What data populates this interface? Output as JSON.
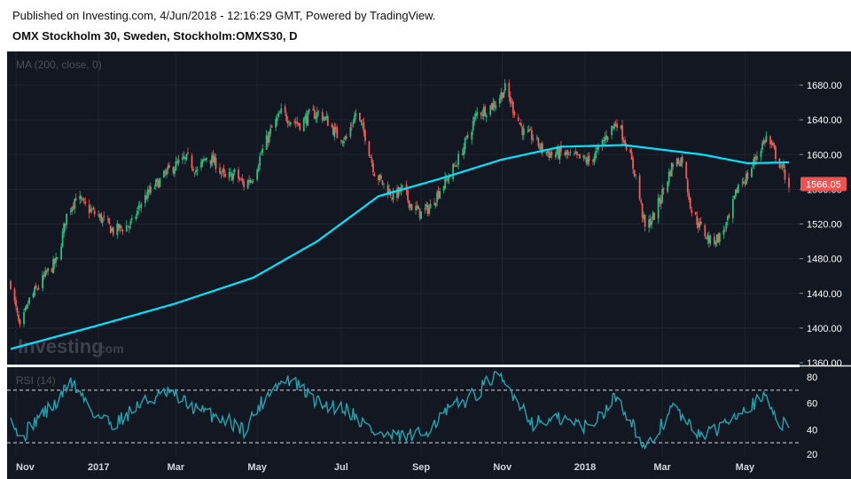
{
  "header": {
    "published": "Published on Investing.com, 4/Jun/2018 - 12:16:29 GMT, Powered by TradingView.",
    "title": "OMX Stockholm 30, Sweden, Stockholm:OMXS30, D"
  },
  "watermark": {
    "brand": "Investing",
    "suffix": ".com"
  },
  "colors": {
    "background": "#131722",
    "grid": "#1f2430",
    "up": "#26c281",
    "down": "#ef5a5a",
    "ma": "#00e5ff",
    "rsi": "#1fa5b0",
    "price_badge": "#ef5350"
  },
  "chart_data": [
    {
      "type": "candlestick",
      "legend": "MA (200, close, 0)",
      "ylim": [
        1360,
        1700
      ],
      "yticks": [
        "1680.00",
        "1640.00",
        "1600.00",
        "1560.00",
        "1520.00",
        "1480.00",
        "1440.00",
        "1400.00",
        "1360.00"
      ],
      "last_price": "1566.05",
      "x_labels": [
        "Nov",
        "2017",
        "Mar",
        "May",
        "Jul",
        "Sep",
        "Nov",
        "2018",
        "Mar",
        "May"
      ],
      "close_anchors": [
        [
          "2016-10-28",
          1452
        ],
        [
          "2016-11-04",
          1398
        ],
        [
          "2016-11-11",
          1432
        ],
        [
          "2016-11-25",
          1465
        ],
        [
          "2016-12-02",
          1478
        ],
        [
          "2016-12-09",
          1530
        ],
        [
          "2016-12-16",
          1552
        ],
        [
          "2016-12-23",
          1540
        ],
        [
          "2017-01-05",
          1525
        ],
        [
          "2017-01-13",
          1512
        ],
        [
          "2017-01-27",
          1520
        ],
        [
          "2017-02-03",
          1545
        ],
        [
          "2017-02-10",
          1558
        ],
        [
          "2017-02-17",
          1570
        ],
        [
          "2017-02-24",
          1582
        ],
        [
          "2017-03-03",
          1590
        ],
        [
          "2017-03-10",
          1595
        ],
        [
          "2017-03-17",
          1580
        ],
        [
          "2017-03-24",
          1598
        ],
        [
          "2017-03-31",
          1590
        ],
        [
          "2017-04-07",
          1572
        ],
        [
          "2017-04-14",
          1578
        ],
        [
          "2017-04-21",
          1565
        ],
        [
          "2017-04-28",
          1575
        ],
        [
          "2017-05-05",
          1605
        ],
        [
          "2017-05-12",
          1630
        ],
        [
          "2017-05-19",
          1648
        ],
        [
          "2017-05-26",
          1640
        ],
        [
          "2017-06-02",
          1635
        ],
        [
          "2017-06-09",
          1645
        ],
        [
          "2017-06-16",
          1648
        ],
        [
          "2017-06-23",
          1638
        ],
        [
          "2017-06-30",
          1622
        ],
        [
          "2017-07-07",
          1618
        ],
        [
          "2017-07-14",
          1648
        ],
        [
          "2017-07-21",
          1622
        ],
        [
          "2017-07-28",
          1580
        ],
        [
          "2017-08-04",
          1565
        ],
        [
          "2017-08-11",
          1552
        ],
        [
          "2017-08-18",
          1560
        ],
        [
          "2017-08-25",
          1540
        ],
        [
          "2017-09-01",
          1532
        ],
        [
          "2017-09-08",
          1540
        ],
        [
          "2017-09-15",
          1560
        ],
        [
          "2017-09-22",
          1575
        ],
        [
          "2017-09-29",
          1595
        ],
        [
          "2017-10-06",
          1620
        ],
        [
          "2017-10-13",
          1648
        ],
        [
          "2017-10-20",
          1652
        ],
        [
          "2017-10-27",
          1660
        ],
        [
          "2017-11-03",
          1676
        ],
        [
          "2017-11-10",
          1650
        ],
        [
          "2017-11-17",
          1625
        ],
        [
          "2017-11-24",
          1620
        ],
        [
          "2017-12-01",
          1605
        ],
        [
          "2017-12-08",
          1600
        ],
        [
          "2017-12-15",
          1602
        ],
        [
          "2017-12-22",
          1598
        ],
        [
          "2018-01-05",
          1592
        ],
        [
          "2018-01-12",
          1605
        ],
        [
          "2018-01-19",
          1625
        ],
        [
          "2018-01-26",
          1638
        ],
        [
          "2018-02-02",
          1612
        ],
        [
          "2018-02-09",
          1575
        ],
        [
          "2018-02-16",
          1515
        ],
        [
          "2018-02-23",
          1530
        ],
        [
          "2018-03-02",
          1560
        ],
        [
          "2018-03-09",
          1590
        ],
        [
          "2018-03-16",
          1595
        ],
        [
          "2018-03-23",
          1535
        ],
        [
          "2018-03-30",
          1515
        ],
        [
          "2018-04-06",
          1500
        ],
        [
          "2018-04-13",
          1505
        ],
        [
          "2018-04-20",
          1525
        ],
        [
          "2018-04-27",
          1565
        ],
        [
          "2018-05-04",
          1575
        ],
        [
          "2018-05-11",
          1600
        ],
        [
          "2018-05-18",
          1620
        ],
        [
          "2018-05-25",
          1600
        ],
        [
          "2018-06-04",
          1566
        ]
      ],
      "ma": {
        "name": "MA (200, close, 0)",
        "anchors": [
          [
            "2016-10-28",
            1376
          ],
          [
            "2016-12-30",
            1402
          ],
          [
            "2017-02-28",
            1428
          ],
          [
            "2017-04-28",
            1458
          ],
          [
            "2017-06-15",
            1500
          ],
          [
            "2017-07-31",
            1552
          ],
          [
            "2017-09-15",
            1572
          ],
          [
            "2017-10-31",
            1594
          ],
          [
            "2017-12-15",
            1609
          ],
          [
            "2018-01-31",
            1611
          ],
          [
            "2018-03-31",
            1600
          ],
          [
            "2018-05-04",
            1590
          ],
          [
            "2018-06-04",
            1591
          ]
        ]
      }
    },
    {
      "type": "line",
      "legend": "RSI (14)",
      "ylim": [
        20,
        85
      ],
      "yticks": [
        "80",
        "60",
        "40",
        "20"
      ],
      "bands": [
        70,
        30
      ],
      "anchors": [
        [
          "2016-10-28",
          55
        ],
        [
          "2016-11-04",
          32
        ],
        [
          "2016-11-18",
          50
        ],
        [
          "2016-12-02",
          60
        ],
        [
          "2016-12-12",
          78
        ],
        [
          "2016-12-30",
          52
        ],
        [
          "2017-01-13",
          44
        ],
        [
          "2017-02-03",
          60
        ],
        [
          "2017-02-24",
          68
        ],
        [
          "2017-03-17",
          55
        ],
        [
          "2017-04-07",
          48
        ],
        [
          "2017-04-21",
          40
        ],
        [
          "2017-05-12",
          72
        ],
        [
          "2017-05-26",
          78
        ],
        [
          "2017-06-16",
          60
        ],
        [
          "2017-07-07",
          56
        ],
        [
          "2017-07-28",
          38
        ],
        [
          "2017-08-11",
          34
        ],
        [
          "2017-09-01",
          36
        ],
        [
          "2017-09-22",
          55
        ],
        [
          "2017-10-13",
          68
        ],
        [
          "2017-10-27",
          82
        ],
        [
          "2017-11-10",
          66
        ],
        [
          "2017-11-24",
          45
        ],
        [
          "2017-12-15",
          48
        ],
        [
          "2018-01-05",
          42
        ],
        [
          "2018-01-26",
          66
        ],
        [
          "2018-02-09",
          40
        ],
        [
          "2018-02-16",
          22
        ],
        [
          "2018-03-09",
          58
        ],
        [
          "2018-03-23",
          40
        ],
        [
          "2018-04-06",
          36
        ],
        [
          "2018-04-27",
          55
        ],
        [
          "2018-05-18",
          64
        ],
        [
          "2018-05-28",
          45
        ],
        [
          "2018-06-04",
          45
        ]
      ]
    }
  ]
}
